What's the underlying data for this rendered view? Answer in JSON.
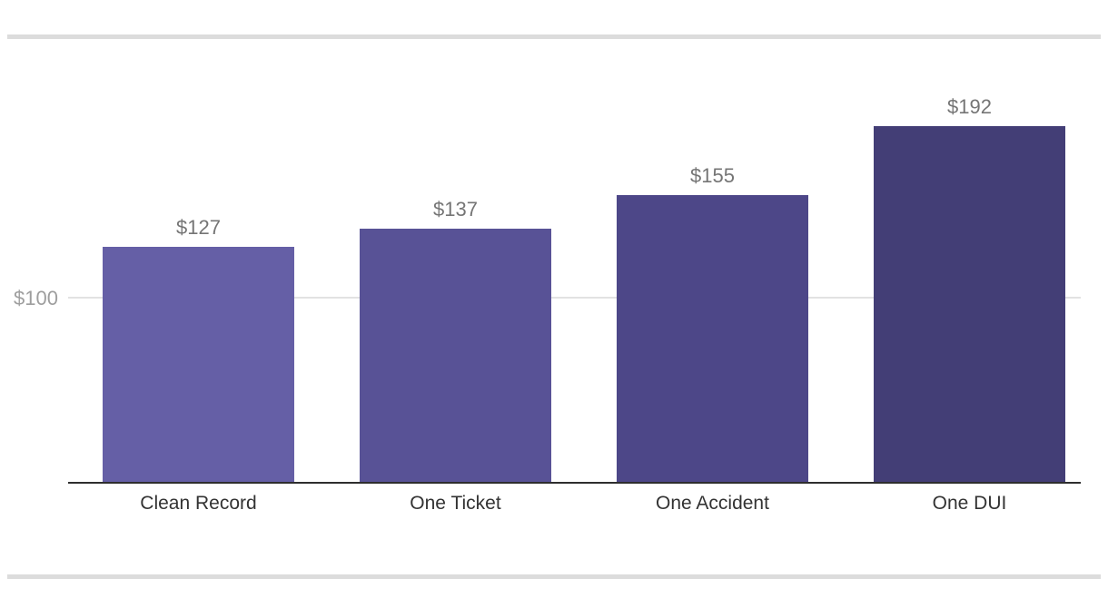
{
  "chart_data": {
    "type": "bar",
    "title": "",
    "xlabel": "",
    "ylabel": "",
    "categories": [
      "Clean Record",
      "One Ticket",
      "One Accident",
      "One DUI"
    ],
    "values": [
      127,
      137,
      155,
      192
    ],
    "value_labels": [
      "$127",
      "$137",
      "$155",
      "$192"
    ],
    "bar_colors": [
      "#655fa6",
      "#585296",
      "#4d4788",
      "#433e76"
    ],
    "y_axis": {
      "tick_label": "$100",
      "tick_value": 100,
      "baseline_value": 0
    },
    "ylim": [
      0,
      260
    ],
    "grid": "single horizontal gridline at tick value",
    "legend": "none"
  },
  "colors": {
    "background": "#ffffff",
    "gridline": "#e2e2e2",
    "axis_line": "#2e2e2e",
    "tick_label": "#9e9e9e",
    "value_label": "#757575",
    "category_label": "#333333",
    "divider": "#dcdcdc"
  }
}
